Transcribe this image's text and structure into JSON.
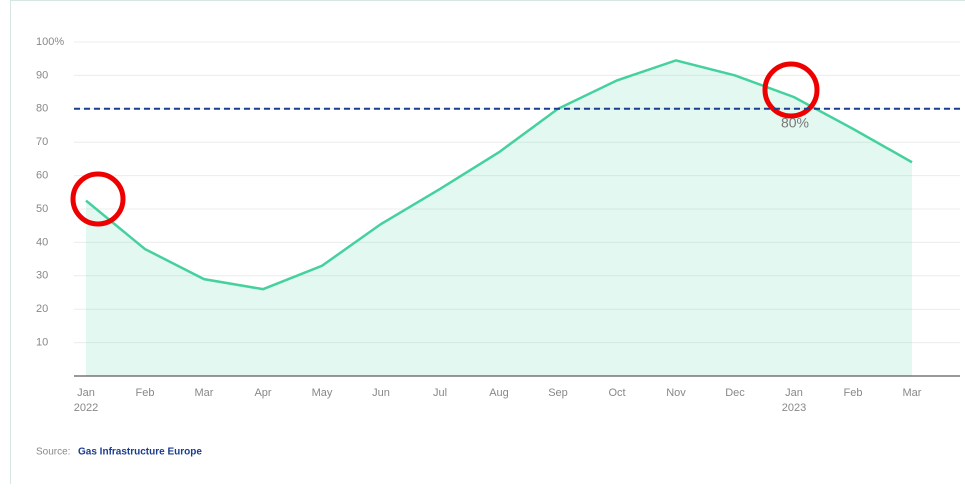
{
  "chart_data": {
    "type": "area",
    "categories": [
      "Jan",
      "Feb",
      "Mar",
      "Apr",
      "May",
      "Jun",
      "Jul",
      "Aug",
      "Sep",
      "Oct",
      "Nov",
      "Dec",
      "Jan",
      "Feb",
      "Mar"
    ],
    "category_years": [
      "2022",
      null,
      null,
      null,
      null,
      null,
      null,
      null,
      null,
      null,
      null,
      null,
      "2023",
      null,
      null
    ],
    "series": [
      {
        "color": "#45d19e",
        "values": [
          52.5,
          38,
          29,
          26,
          33,
          45.5,
          56,
          67,
          80,
          88.5,
          94.5,
          90,
          83.5,
          74,
          64
        ]
      }
    ],
    "ylim": [
      0,
      100
    ],
    "yticks": [
      10,
      20,
      30,
      40,
      50,
      60,
      70,
      80,
      90,
      {
        "value": 100,
        "label": "100%"
      }
    ],
    "grid": true,
    "reference_line": {
      "value": 80,
      "label": "80%",
      "color": "#1a3d8f"
    },
    "source": {
      "prefix": "Source:",
      "name": "Gas Infrastructure Europe"
    }
  }
}
